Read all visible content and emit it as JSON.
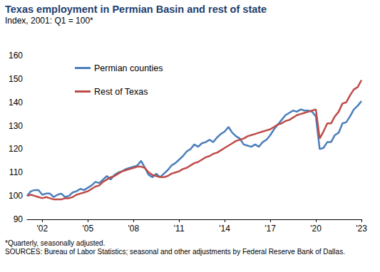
{
  "chart_data": {
    "type": "line",
    "title": "Texas employment in Permian Basin and rest of state",
    "subtitle": "Index, 2001: Q1 = 100*",
    "notes": [
      "*Quarterly, seasonally adjusted.",
      "SOURCES: Bureau of Labor Statistics; seasonal and other adjustments by Federal Reserve Bank of Dallas."
    ],
    "categories": [
      null,
      null,
      null,
      null,
      "'02",
      null,
      null,
      null,
      null,
      null,
      null,
      null,
      null,
      null,
      null,
      null,
      "'05",
      null,
      null,
      null,
      null,
      null,
      null,
      null,
      null,
      null,
      null,
      null,
      "'08",
      null,
      null,
      null,
      null,
      null,
      null,
      null,
      null,
      null,
      null,
      null,
      "'11",
      null,
      null,
      null,
      null,
      null,
      null,
      null,
      null,
      null,
      null,
      null,
      "'14",
      null,
      null,
      null,
      null,
      null,
      null,
      null,
      null,
      null,
      null,
      null,
      "'17",
      null,
      null,
      null,
      null,
      null,
      null,
      null,
      null,
      null,
      null,
      null,
      "'20",
      null,
      null,
      null,
      null,
      null,
      null,
      null,
      null,
      null,
      null,
      null,
      "'23"
    ],
    "series": [
      {
        "name": "Permian counties",
        "color": "#4a7ebb",
        "values": [
          100,
          102,
          102.5,
          102.5,
          100.5,
          101,
          101,
          99.5,
          100.5,
          101,
          99.5,
          100,
          101.5,
          102,
          103,
          102.5,
          103.5,
          104.5,
          106,
          105.5,
          107,
          108.5,
          107,
          109,
          110,
          110.5,
          111.5,
          112,
          112.5,
          113,
          115,
          112,
          109,
          108,
          109.5,
          108,
          109.5,
          111,
          113,
          114,
          115.5,
          117,
          119,
          120,
          122,
          121,
          122.5,
          123,
          124,
          123,
          125,
          126.5,
          127.5,
          129.5,
          127,
          125.5,
          124.5,
          122,
          121.5,
          121,
          122,
          121,
          123,
          124,
          126,
          128.5,
          130.5,
          132.5,
          134.5,
          135.5,
          136.5,
          136,
          137,
          136.5,
          136.5,
          136,
          134,
          120,
          120.5,
          123,
          123,
          126,
          127,
          131,
          131.5,
          134,
          137,
          138.5,
          140.5
        ]
      },
      {
        "name": "Rest of Texas",
        "color": "#be4b48",
        "values": [
          100,
          100.5,
          100,
          99.5,
          99,
          99.5,
          99,
          98.5,
          98.5,
          98.5,
          99,
          99,
          99.5,
          100.5,
          101,
          101.5,
          102,
          103,
          104,
          104.5,
          106,
          107,
          108,
          108.5,
          109.5,
          110.5,
          111,
          111.5,
          112,
          112.5,
          112.5,
          112,
          110,
          109,
          108.5,
          108,
          108,
          108.5,
          109.5,
          110,
          110.5,
          111.5,
          112,
          113,
          114,
          114.5,
          115.5,
          116.5,
          117,
          118,
          118.5,
          119.5,
          120.5,
          121.5,
          122.5,
          123.5,
          124,
          124.5,
          125.5,
          126,
          126.5,
          127,
          127.5,
          128,
          128.5,
          129.5,
          130.5,
          131,
          132,
          132.5,
          133.5,
          134.5,
          135,
          135.5,
          136,
          136.5,
          137,
          124.5,
          127.5,
          131,
          131,
          134,
          136,
          139.5,
          140,
          143,
          145.5,
          146.5,
          149.5
        ]
      }
    ],
    "ylim": [
      90,
      160
    ],
    "yticks": [
      90,
      100,
      110,
      120,
      130,
      140,
      150,
      160
    ],
    "grid": false,
    "legend": "upper left"
  }
}
